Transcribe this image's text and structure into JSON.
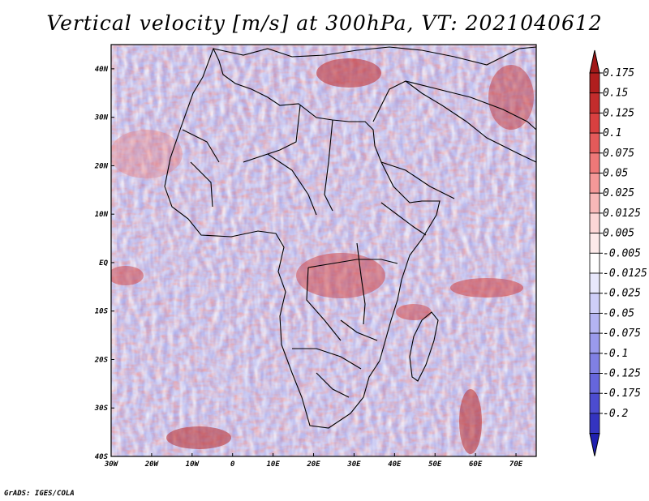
{
  "title": "Vertical velocity [m/s] at 300hPa, VT: 2021040612",
  "credit": "GrADS: IGES/COLA",
  "map": {
    "lon_range": [
      -30,
      75
    ],
    "lat_range": [
      -40,
      45
    ],
    "lon_ticks": [
      {
        "value": -30,
        "label": "30W"
      },
      {
        "value": -20,
        "label": "20W"
      },
      {
        "value": -10,
        "label": "10W"
      },
      {
        "value": 0,
        "label": "0"
      },
      {
        "value": 10,
        "label": "10E"
      },
      {
        "value": 20,
        "label": "20E"
      },
      {
        "value": 30,
        "label": "30E"
      },
      {
        "value": 40,
        "label": "40E"
      },
      {
        "value": 50,
        "label": "50E"
      },
      {
        "value": 60,
        "label": "60E"
      },
      {
        "value": 70,
        "label": "70E"
      }
    ],
    "lat_ticks": [
      {
        "value": 40,
        "label": "40N"
      },
      {
        "value": 30,
        "label": "30N"
      },
      {
        "value": 20,
        "label": "20N"
      },
      {
        "value": 10,
        "label": "10N"
      },
      {
        "value": 0,
        "label": "EQ"
      },
      {
        "value": -10,
        "label": "10S"
      },
      {
        "value": -20,
        "label": "20S"
      },
      {
        "value": -30,
        "label": "30S"
      },
      {
        "value": -40,
        "label": "40S"
      }
    ]
  },
  "colorbar": {
    "levels": [
      {
        "label": "0.175",
        "color": "#b01e1e"
      },
      {
        "label": "0.15",
        "color": "#c22c2c"
      },
      {
        "label": "0.125",
        "color": "#d84040"
      },
      {
        "label": "0.1",
        "color": "#e45a5a"
      },
      {
        "label": "0.075",
        "color": "#ee7878"
      },
      {
        "label": "0.05",
        "color": "#f49898"
      },
      {
        "label": "0.025",
        "color": "#f8b8b8"
      },
      {
        "label": "0.0125",
        "color": "#fcd6d6"
      },
      {
        "label": "0.005",
        "color": "#fdeaea"
      },
      {
        "label": "-0.005",
        "color": "#ffffff"
      },
      {
        "label": "-0.0125",
        "color": "#e8e8fc"
      },
      {
        "label": "-0.025",
        "color": "#ceceF8"
      },
      {
        "label": "-0.05",
        "color": "#b4b4f2"
      },
      {
        "label": "-0.075",
        "color": "#9a9aec"
      },
      {
        "label": "-0.1",
        "color": "#8080e4"
      },
      {
        "label": "-0.125",
        "color": "#6666dc"
      },
      {
        "label": "-0.175",
        "color": "#4c4cd0"
      },
      {
        "label": "-0.2",
        "color": "#3434c0"
      }
    ],
    "top_color": "#a01818",
    "bottom_color": "#2020b0"
  }
}
